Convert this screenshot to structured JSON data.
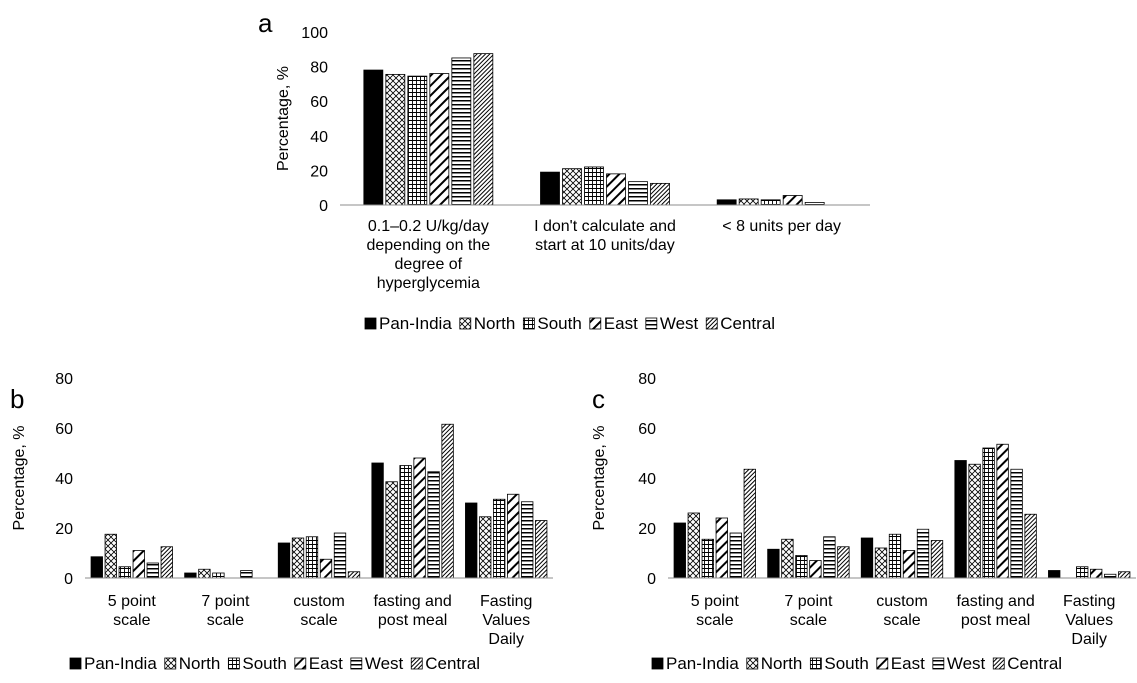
{
  "chart_data": [
    {
      "id": "a",
      "type": "bar",
      "panel_label": "a",
      "ylabel": "Percentage, %",
      "ylim": [
        0,
        100
      ],
      "yticks": [
        0,
        20,
        40,
        60,
        80,
        100
      ],
      "grid": false,
      "legend_position": "bottom",
      "categories": [
        [
          "0.1–0.2 U/kg/day",
          "depending on the",
          "degree of",
          "hyperglycemia"
        ],
        [
          "I don't calculate and",
          "start at 10 units/day"
        ],
        [
          "< 8 units per day"
        ]
      ],
      "series": [
        {
          "name": "Pan-India",
          "values": [
            78,
            19,
            3
          ]
        },
        {
          "name": "North",
          "values": [
            75.5,
            21,
            3.5
          ]
        },
        {
          "name": "South",
          "values": [
            74.5,
            22,
            3
          ]
        },
        {
          "name": "East",
          "values": [
            76,
            18,
            5.5
          ]
        },
        {
          "name": "West",
          "values": [
            85,
            13.5,
            1.5
          ]
        },
        {
          "name": "Central",
          "values": [
            87.5,
            12.5,
            0
          ]
        }
      ]
    },
    {
      "id": "b",
      "type": "bar",
      "panel_label": "b",
      "ylabel": "Percentage, %",
      "ylim": [
        0,
        80
      ],
      "yticks": [
        0,
        20,
        40,
        60,
        80
      ],
      "grid": false,
      "legend_position": "bottom",
      "categories": [
        [
          "5 point",
          "scale"
        ],
        [
          "7 point",
          "scale"
        ],
        [
          "custom",
          "scale"
        ],
        [
          "fasting and",
          "post meal"
        ],
        [
          "Fasting",
          "Values",
          "Daily"
        ]
      ],
      "series": [
        {
          "name": "Pan-India",
          "values": [
            8.5,
            2,
            14,
            46,
            30
          ]
        },
        {
          "name": "North",
          "values": [
            17.5,
            3.5,
            16,
            38.5,
            24.5
          ]
        },
        {
          "name": "South",
          "values": [
            4.5,
            2,
            16.5,
            45,
            31.5
          ]
        },
        {
          "name": "East",
          "values": [
            11,
            0,
            7.5,
            48,
            33.5
          ]
        },
        {
          "name": "West",
          "values": [
            6,
            3,
            18,
            42.5,
            30.5
          ]
        },
        {
          "name": "Central",
          "values": [
            12.5,
            0,
            2.5,
            61.5,
            23
          ]
        }
      ]
    },
    {
      "id": "c",
      "type": "bar",
      "panel_label": "c",
      "ylabel": "Percentage, %",
      "ylim": [
        0,
        80
      ],
      "yticks": [
        0,
        20,
        40,
        60,
        80
      ],
      "grid": false,
      "legend_position": "bottom",
      "categories": [
        [
          "5 point",
          "scale"
        ],
        [
          "7 point",
          "scale"
        ],
        [
          "custom",
          "scale"
        ],
        [
          "fasting and",
          "post meal"
        ],
        [
          "Fasting",
          "Values",
          "Daily"
        ]
      ],
      "series": [
        {
          "name": "Pan-India",
          "values": [
            22,
            11.5,
            16,
            47,
            3
          ]
        },
        {
          "name": "North",
          "values": [
            26,
            15.5,
            12,
            45.5,
            0
          ]
        },
        {
          "name": "South",
          "values": [
            15.5,
            9,
            17.5,
            52,
            4.5
          ]
        },
        {
          "name": "East",
          "values": [
            24,
            7,
            11,
            53.5,
            3.5
          ]
        },
        {
          "name": "West",
          "values": [
            18,
            16.5,
            19.5,
            43.5,
            1.5
          ]
        },
        {
          "name": "Central",
          "values": [
            43.5,
            12.5,
            15,
            25.5,
            2.5
          ]
        }
      ]
    }
  ],
  "series_styles": [
    {
      "name": "Pan-India",
      "fill": "#000000",
      "pattern": "solid"
    },
    {
      "name": "North",
      "fill": "#ffffff",
      "pattern": "diamond-lattice"
    },
    {
      "name": "South",
      "fill": "#ffffff",
      "pattern": "grid"
    },
    {
      "name": "East",
      "fill": "#ffffff",
      "pattern": "wide-diagonal"
    },
    {
      "name": "West",
      "fill": "#ffffff",
      "pattern": "horizontal-lines"
    },
    {
      "name": "Central",
      "fill": "#ffffff",
      "pattern": "fine-diagonal"
    }
  ]
}
